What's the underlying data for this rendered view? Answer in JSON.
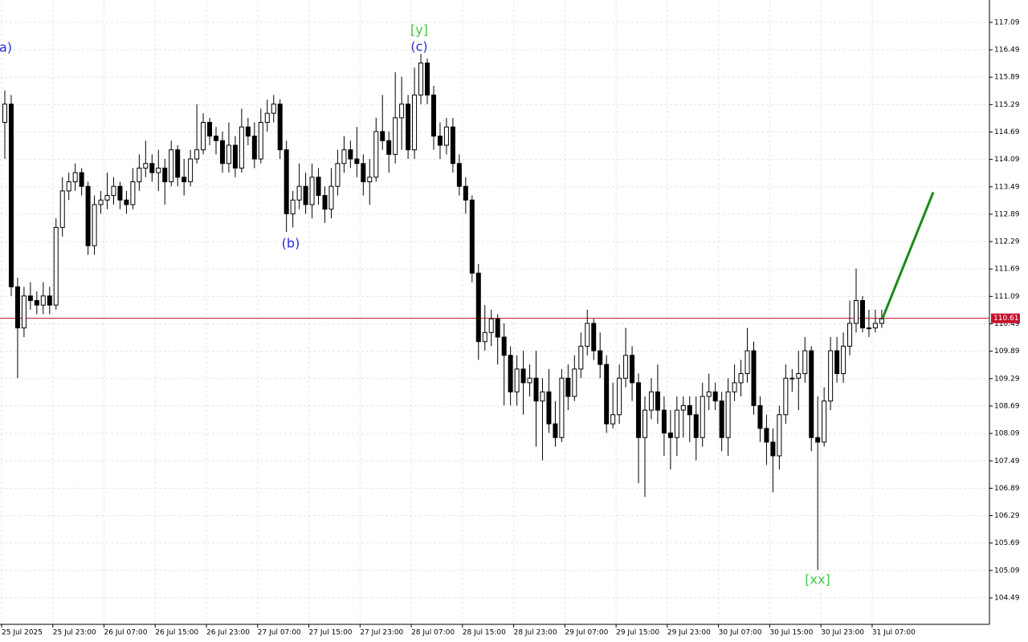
{
  "chart_data": {
    "type": "candlestick",
    "categories": [
      "25 Jul 2025",
      null,
      null,
      null,
      null,
      null,
      null,
      null,
      "25 Jul 23:00",
      null,
      null,
      null,
      null,
      null,
      null,
      null,
      "26 Jul 07:00",
      null,
      null,
      null,
      null,
      null,
      null,
      null,
      "26 Jul 15:00",
      null,
      null,
      null,
      null,
      null,
      null,
      null,
      "26 Jul 23:00",
      null,
      null,
      null,
      null,
      null,
      null,
      null,
      "27 Jul 07:00",
      null,
      null,
      null,
      null,
      null,
      null,
      null,
      "27 Jul 15:00",
      null,
      null,
      null,
      null,
      null,
      null,
      null,
      "27 Jul 23:00",
      null,
      null,
      null,
      null,
      null,
      null,
      null,
      "28 Jul 07:00",
      null,
      null,
      null,
      null,
      null,
      null,
      null,
      "28 Jul 15:00",
      null,
      null,
      null,
      null,
      null,
      null,
      null,
      "28 Jul 23:00",
      null,
      null,
      null,
      null,
      null,
      null,
      null,
      "29 Jul 07:00",
      null,
      null,
      null,
      null,
      null,
      null,
      null,
      "29 Jul 15:00",
      null,
      null,
      null,
      null,
      null,
      null,
      null,
      "29 Jul 23:00",
      null,
      null,
      null,
      null,
      null,
      null,
      null,
      "30 Jul 07:00",
      null,
      null,
      null,
      null,
      null,
      null,
      null,
      "30 Jul 15:00",
      null,
      null,
      null,
      null,
      null,
      null,
      null,
      "30 Jul 23:00",
      null,
      null,
      null,
      null,
      null,
      null,
      null,
      "31 Jul 07:00",
      null
    ],
    "open": [
      114.9,
      115.3,
      111.3,
      110.4,
      111.1,
      111.0,
      110.9,
      111.1,
      110.9,
      112.6,
      113.4,
      113.6,
      113.8,
      113.5,
      112.2,
      113.1,
      113.2,
      113.3,
      113.5,
      113.2,
      113.1,
      113.6,
      113.9,
      114.0,
      113.8,
      113.9,
      113.6,
      114.3,
      113.7,
      113.6,
      114.1,
      114.3,
      114.9,
      114.6,
      114.5,
      114.0,
      114.4,
      113.9,
      114.8,
      114.6,
      114.1,
      114.9,
      115.1,
      115.3,
      114.3,
      112.9,
      113.2,
      113.5,
      113.1,
      113.7,
      113.3,
      113.0,
      113.5,
      114.0,
      114.3,
      114.1,
      114.0,
      113.6,
      113.7,
      114.7,
      114.5,
      114.2,
      115.0,
      115.3,
      114.3,
      115.5,
      116.2,
      115.5,
      114.6,
      114.4,
      114.8,
      114.0,
      113.5,
      113.2,
      111.6,
      110.1,
      110.3,
      110.6,
      110.2,
      109.8,
      109.0,
      109.5,
      109.2,
      109.3,
      108.8,
      109.0,
      108.3,
      108.0,
      109.3,
      108.9,
      109.5,
      110.0,
      110.5,
      109.9,
      109.6,
      108.3,
      108.5,
      109.3,
      109.8,
      109.2,
      108.0,
      108.6,
      109.0,
      108.6,
      108.1,
      108.0,
      108.6,
      108.7,
      108.5,
      108.0,
      108.9,
      109.0,
      108.8,
      108.0,
      109.0,
      109.2,
      109.4,
      109.9,
      108.7,
      108.2,
      107.9,
      107.6,
      108.5,
      109.3,
      109.3,
      109.4,
      109.9,
      108.0,
      107.9,
      108.8,
      109.9,
      109.4,
      110.0,
      110.5,
      111.0,
      110.4,
      110.4,
      110.5
    ],
    "high": [
      115.6,
      115.5,
      111.5,
      111.3,
      111.4,
      111.2,
      111.4,
      111.3,
      112.8,
      113.7,
      113.8,
      114.0,
      113.9,
      113.6,
      113.3,
      113.4,
      113.8,
      113.7,
      113.6,
      113.4,
      113.9,
      114.2,
      114.5,
      114.2,
      114.3,
      114.1,
      114.5,
      114.4,
      114.1,
      114.3,
      115.3,
      115.1,
      115.0,
      114.8,
      114.7,
      114.9,
      114.6,
      115.2,
      115.0,
      114.9,
      115.2,
      115.4,
      115.5,
      115.4,
      114.5,
      113.4,
      114.0,
      113.8,
      114.0,
      113.9,
      113.5,
      113.9,
      114.3,
      114.6,
      114.5,
      114.8,
      114.2,
      114.1,
      115.0,
      115.5,
      114.7,
      116.0,
      115.9,
      115.5,
      116.1,
      116.4,
      116.3,
      115.7,
      114.9,
      115.0,
      115.0,
      114.2,
      113.7,
      113.3,
      111.8,
      110.9,
      110.8,
      110.7,
      110.5,
      110.0,
      109.8,
      109.9,
      109.6,
      109.9,
      109.3,
      109.5,
      108.8,
      109.5,
      109.6,
      109.8,
      110.3,
      110.8,
      110.6,
      110.3,
      109.8,
      109.2,
      109.6,
      110.4,
      110.0,
      109.4,
      108.9,
      109.3,
      109.6,
      108.9,
      108.6,
      108.9,
      108.9,
      108.9,
      108.9,
      109.2,
      109.4,
      109.2,
      109.0,
      109.3,
      109.6,
      109.7,
      110.4,
      110.1,
      108.9,
      108.5,
      108.2,
      108.7,
      109.6,
      109.5,
      109.9,
      110.2,
      110.0,
      108.9,
      109.1,
      110.2,
      110.2,
      110.3,
      111.0,
      111.7,
      111.1,
      110.8,
      110.8,
      110.8
    ],
    "low": [
      114.1,
      111.1,
      109.3,
      110.2,
      110.8,
      110.7,
      110.7,
      110.7,
      110.8,
      112.4,
      113.2,
      113.4,
      113.3,
      112.0,
      112.0,
      112.9,
      113.0,
      113.1,
      113.0,
      112.9,
      113.0,
      113.4,
      113.7,
      113.6,
      113.4,
      113.1,
      113.5,
      113.5,
      113.3,
      113.5,
      114.0,
      114.2,
      114.4,
      114.2,
      113.8,
      113.8,
      113.7,
      113.8,
      114.4,
      113.9,
      114.0,
      114.7,
      114.9,
      114.1,
      112.5,
      112.6,
      113.0,
      112.9,
      112.8,
      113.1,
      112.7,
      112.8,
      113.3,
      113.8,
      113.9,
      113.7,
      113.3,
      113.1,
      113.6,
      114.3,
      113.8,
      114.0,
      114.3,
      114.1,
      114.1,
      115.3,
      115.3,
      114.3,
      114.1,
      114.2,
      113.8,
      113.3,
      112.9,
      111.4,
      109.7,
      109.9,
      110.0,
      109.6,
      108.7,
      108.7,
      108.7,
      108.5,
      108.9,
      107.8,
      107.5,
      108.1,
      107.8,
      107.9,
      108.6,
      108.8,
      109.3,
      109.8,
      109.7,
      109.3,
      108.1,
      108.2,
      108.3,
      109.1,
      108.8,
      107.0,
      106.7,
      108.4,
      108.3,
      107.6,
      107.3,
      107.6,
      108.0,
      107.9,
      107.5,
      107.8,
      108.6,
      108.6,
      107.7,
      107.6,
      108.8,
      108.9,
      109.2,
      108.5,
      107.9,
      107.4,
      106.8,
      107.3,
      108.3,
      109.0,
      108.6,
      109.2,
      107.7,
      105.1,
      107.8,
      108.6,
      109.2,
      109.2,
      109.8,
      110.3,
      110.3,
      110.2,
      110.3,
      110.4
    ],
    "close": [
      115.3,
      111.3,
      110.4,
      111.1,
      111.0,
      110.9,
      111.1,
      110.9,
      112.6,
      113.4,
      113.6,
      113.8,
      113.5,
      112.2,
      113.1,
      113.2,
      113.3,
      113.5,
      113.2,
      113.1,
      113.6,
      113.9,
      114.0,
      113.8,
      113.9,
      113.6,
      114.3,
      113.7,
      113.6,
      114.1,
      114.3,
      114.9,
      114.6,
      114.5,
      114.0,
      114.4,
      113.9,
      114.8,
      114.6,
      114.1,
      114.9,
      115.1,
      115.3,
      114.3,
      112.9,
      113.2,
      113.5,
      113.1,
      113.7,
      113.3,
      113.0,
      113.5,
      114.0,
      114.3,
      114.1,
      114.0,
      113.6,
      113.7,
      114.7,
      114.5,
      114.2,
      115.0,
      115.3,
      114.3,
      115.5,
      116.2,
      115.5,
      114.6,
      114.4,
      114.8,
      114.0,
      113.5,
      113.2,
      111.6,
      110.1,
      110.3,
      110.6,
      110.2,
      109.8,
      109.0,
      109.5,
      109.2,
      109.3,
      108.8,
      109.0,
      108.3,
      108.0,
      109.3,
      108.9,
      109.5,
      110.0,
      110.5,
      109.9,
      109.6,
      108.3,
      108.5,
      109.3,
      109.8,
      109.2,
      108.0,
      108.6,
      109.0,
      108.6,
      108.1,
      108.0,
      108.6,
      108.7,
      108.5,
      108.0,
      108.9,
      109.0,
      108.8,
      108.0,
      109.0,
      109.2,
      109.4,
      109.9,
      108.7,
      108.2,
      107.9,
      107.6,
      108.5,
      109.3,
      109.3,
      109.4,
      109.9,
      108.0,
      107.9,
      108.8,
      109.9,
      109.4,
      110.0,
      110.5,
      111.0,
      110.4,
      110.4,
      110.5,
      110.6
    ],
    "up_color": "#ffffff",
    "down_color": "#000000",
    "ylim": [
      103.91,
      117.58
    ],
    "yticks": [
      104.49,
      105.09,
      105.69,
      106.29,
      106.89,
      107.49,
      108.09,
      108.69,
      109.29,
      109.89,
      110.49,
      111.09,
      111.69,
      112.29,
      112.89,
      113.49,
      114.09,
      114.69,
      115.29,
      115.89,
      116.49,
      117.09
    ],
    "grid": true,
    "current_price": {
      "value": 110.61,
      "color": "#c8102e"
    },
    "forecast": {
      "values": [
        110.61,
        113.37
      ],
      "color": "#1a8a1a"
    },
    "annotations": [
      {
        "text": "a)",
        "color": "#2b2bd6"
      },
      {
        "text": "[y]",
        "color": "#43c443"
      },
      {
        "text": "(c)",
        "color": "#2b2bd6"
      },
      {
        "text": "(b)",
        "color": "#2b2bd6"
      },
      {
        "text": "[xx]",
        "color": "#43c443"
      }
    ]
  }
}
